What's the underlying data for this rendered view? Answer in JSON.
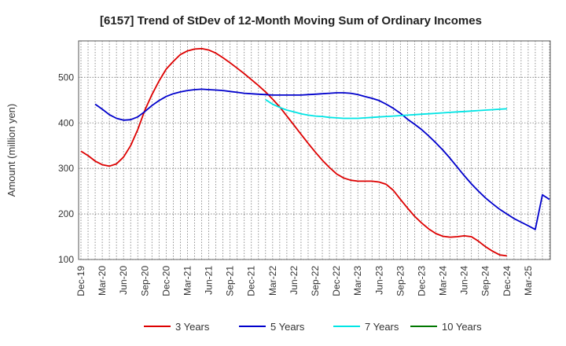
{
  "chart_data": {
    "type": "line",
    "title": "[6157]  Trend of StDev of 12-Month Moving Sum of Ordinary Incomes",
    "xlabel": "",
    "ylabel": "Amount (million yen)",
    "ylim": [
      100,
      580
    ],
    "yticks": [
      100,
      200,
      300,
      400,
      500
    ],
    "x_range": [
      0,
      66
    ],
    "x_ticks": [
      {
        "i": 0,
        "label": "Dec-19"
      },
      {
        "i": 3,
        "label": "Mar-20"
      },
      {
        "i": 6,
        "label": "Jun-20"
      },
      {
        "i": 9,
        "label": "Sep-20"
      },
      {
        "i": 12,
        "label": "Dec-20"
      },
      {
        "i": 15,
        "label": "Mar-21"
      },
      {
        "i": 18,
        "label": "Jun-21"
      },
      {
        "i": 21,
        "label": "Sep-21"
      },
      {
        "i": 24,
        "label": "Dec-21"
      },
      {
        "i": 27,
        "label": "Mar-22"
      },
      {
        "i": 30,
        "label": "Jun-22"
      },
      {
        "i": 33,
        "label": "Sep-22"
      },
      {
        "i": 36,
        "label": "Dec-22"
      },
      {
        "i": 39,
        "label": "Mar-23"
      },
      {
        "i": 42,
        "label": "Jun-23"
      },
      {
        "i": 45,
        "label": "Sep-23"
      },
      {
        "i": 48,
        "label": "Dec-23"
      },
      {
        "i": 51,
        "label": "Mar-24"
      },
      {
        "i": 54,
        "label": "Jun-24"
      },
      {
        "i": 57,
        "label": "Sep-24"
      },
      {
        "i": 60,
        "label": "Dec-24"
      },
      {
        "i": 63,
        "label": "Mar-25"
      }
    ],
    "grid": true,
    "series": [
      {
        "name": "3 Years",
        "color": "#dd0000",
        "points": [
          [
            0,
            338
          ],
          [
            1,
            328
          ],
          [
            2,
            316
          ],
          [
            3,
            308
          ],
          [
            4,
            305
          ],
          [
            5,
            310
          ],
          [
            6,
            325
          ],
          [
            7,
            350
          ],
          [
            8,
            385
          ],
          [
            9,
            428
          ],
          [
            10,
            462
          ],
          [
            11,
            492
          ],
          [
            12,
            518
          ],
          [
            13,
            535
          ],
          [
            14,
            550
          ],
          [
            15,
            558
          ],
          [
            16,
            562
          ],
          [
            17,
            563
          ],
          [
            18,
            560
          ],
          [
            19,
            553
          ],
          [
            20,
            543
          ],
          [
            21,
            532
          ],
          [
            22,
            520
          ],
          [
            23,
            508
          ],
          [
            24,
            495
          ],
          [
            25,
            482
          ],
          [
            26,
            468
          ],
          [
            27,
            452
          ],
          [
            28,
            435
          ],
          [
            29,
            415
          ],
          [
            30,
            395
          ],
          [
            31,
            375
          ],
          [
            32,
            355
          ],
          [
            33,
            336
          ],
          [
            34,
            318
          ],
          [
            35,
            302
          ],
          [
            36,
            288
          ],
          [
            37,
            279
          ],
          [
            38,
            274
          ],
          [
            39,
            272
          ],
          [
            40,
            272
          ],
          [
            41,
            272
          ],
          [
            42,
            270
          ],
          [
            43,
            265
          ],
          [
            44,
            252
          ],
          [
            45,
            232
          ],
          [
            46,
            213
          ],
          [
            47,
            195
          ],
          [
            48,
            180
          ],
          [
            49,
            167
          ],
          [
            50,
            157
          ],
          [
            51,
            151
          ],
          [
            52,
            149
          ],
          [
            53,
            150
          ],
          [
            54,
            152
          ],
          [
            55,
            150
          ],
          [
            56,
            140
          ],
          [
            57,
            128
          ],
          [
            58,
            118
          ],
          [
            59,
            110
          ],
          [
            60,
            108
          ]
        ]
      },
      {
        "name": "5 Years",
        "color": "#0000cc",
        "points": [
          [
            2,
            441
          ],
          [
            3,
            430
          ],
          [
            4,
            418
          ],
          [
            5,
            410
          ],
          [
            6,
            406
          ],
          [
            7,
            407
          ],
          [
            8,
            413
          ],
          [
            9,
            425
          ],
          [
            10,
            438
          ],
          [
            11,
            449
          ],
          [
            12,
            458
          ],
          [
            13,
            464
          ],
          [
            14,
            468
          ],
          [
            15,
            471
          ],
          [
            16,
            473
          ],
          [
            17,
            474
          ],
          [
            18,
            473
          ],
          [
            19,
            472
          ],
          [
            20,
            471
          ],
          [
            21,
            469
          ],
          [
            22,
            467
          ],
          [
            23,
            465
          ],
          [
            24,
            464
          ],
          [
            25,
            463
          ],
          [
            26,
            462
          ],
          [
            27,
            461
          ],
          [
            28,
            461
          ],
          [
            29,
            461
          ],
          [
            30,
            461
          ],
          [
            31,
            461
          ],
          [
            32,
            462
          ],
          [
            33,
            463
          ],
          [
            34,
            464
          ],
          [
            35,
            465
          ],
          [
            36,
            466
          ],
          [
            37,
            466
          ],
          [
            38,
            465
          ],
          [
            39,
            462
          ],
          [
            40,
            458
          ],
          [
            41,
            454
          ],
          [
            42,
            449
          ],
          [
            43,
            441
          ],
          [
            44,
            432
          ],
          [
            45,
            421
          ],
          [
            46,
            408
          ],
          [
            47,
            397
          ],
          [
            48,
            385
          ],
          [
            49,
            371
          ],
          [
            50,
            356
          ],
          [
            51,
            340
          ],
          [
            52,
            322
          ],
          [
            53,
            303
          ],
          [
            54,
            284
          ],
          [
            55,
            266
          ],
          [
            56,
            250
          ],
          [
            57,
            235
          ],
          [
            58,
            222
          ],
          [
            59,
            210
          ],
          [
            60,
            200
          ],
          [
            61,
            190
          ],
          [
            62,
            182
          ],
          [
            63,
            174
          ],
          [
            64,
            166
          ],
          [
            65,
            242
          ],
          [
            66,
            232
          ]
        ]
      },
      {
        "name": "7 Years",
        "color": "#00e5e5",
        "points": [
          [
            26,
            451
          ],
          [
            27,
            441
          ],
          [
            28,
            434
          ],
          [
            29,
            428
          ],
          [
            30,
            424
          ],
          [
            31,
            420
          ],
          [
            32,
            417
          ],
          [
            33,
            415
          ],
          [
            34,
            414
          ],
          [
            35,
            412
          ],
          [
            36,
            411
          ],
          [
            37,
            410
          ],
          [
            38,
            410
          ],
          [
            39,
            410
          ],
          [
            40,
            411
          ],
          [
            41,
            412
          ],
          [
            42,
            413
          ],
          [
            43,
            414
          ],
          [
            44,
            415
          ],
          [
            45,
            416
          ],
          [
            46,
            417
          ],
          [
            47,
            418
          ],
          [
            48,
            419
          ],
          [
            49,
            420
          ],
          [
            50,
            421
          ],
          [
            51,
            422
          ],
          [
            52,
            423
          ],
          [
            53,
            424
          ],
          [
            54,
            425
          ],
          [
            55,
            426
          ],
          [
            56,
            427
          ],
          [
            57,
            428
          ],
          [
            58,
            429
          ],
          [
            59,
            430
          ],
          [
            60,
            431
          ]
        ]
      },
      {
        "name": "10 Years",
        "color": "#007700",
        "points": []
      }
    ]
  }
}
